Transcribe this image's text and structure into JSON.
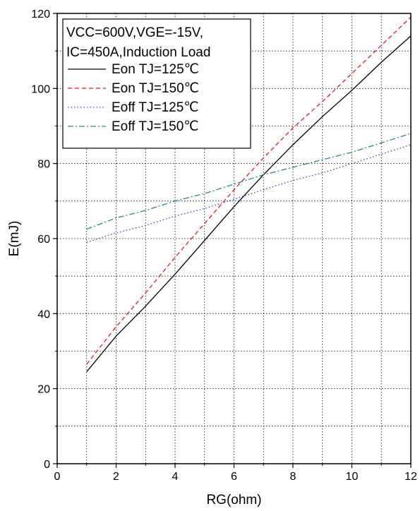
{
  "chart_data": {
    "type": "line",
    "xlabel": "RG(ohm)",
    "ylabel": "E(mJ)",
    "xlim": [
      0,
      12
    ],
    "ylim": [
      0,
      120
    ],
    "x_ticks": [
      0,
      2,
      4,
      6,
      8,
      10,
      12
    ],
    "y_ticks": [
      0,
      20,
      40,
      60,
      80,
      100,
      120
    ],
    "grid": true,
    "legend_position": "top-left",
    "legend_header": [
      "VCC=600V,VGE=-15V,",
      "IC=450A,Induction Load"
    ],
    "series": [
      {
        "name": "Eon TJ=125℃",
        "color": "#000000",
        "dash": "solid",
        "x": [
          1,
          2,
          3,
          4,
          5,
          6,
          7,
          8,
          9,
          10,
          11,
          12
        ],
        "y": [
          24.5,
          34,
          42,
          50.5,
          59.5,
          68.5,
          77,
          85,
          92.5,
          99.5,
          107,
          114
        ]
      },
      {
        "name": "Eon TJ=150℃",
        "color": "#e8141c",
        "dash": "dashed",
        "x": [
          1,
          2,
          3,
          4,
          5,
          6,
          7,
          8,
          9,
          10,
          11,
          12
        ],
        "y": [
          26.5,
          36.5,
          45.5,
          55,
          64,
          73,
          81.5,
          89.5,
          96.5,
          104,
          111.5,
          119
        ]
      },
      {
        "name": "Eoff TJ=125℃",
        "color": "#3b3bd6",
        "dash": "dotted",
        "x": [
          1,
          2,
          3,
          4,
          5,
          6,
          7,
          8,
          9,
          10,
          11,
          12
        ],
        "y": [
          59,
          61.5,
          63.5,
          66,
          68,
          70.5,
          73,
          75.5,
          77.5,
          80,
          82.5,
          85
        ]
      },
      {
        "name": "Eoff TJ=150℃",
        "color": "#1a8c8c",
        "dash": "dashdot",
        "x": [
          1,
          2,
          3,
          4,
          5,
          6,
          7,
          8,
          9,
          10,
          11,
          12
        ],
        "y": [
          62.5,
          65.5,
          67.5,
          70,
          72,
          74.5,
          77,
          79,
          81,
          83,
          85.5,
          88
        ]
      }
    ]
  }
}
